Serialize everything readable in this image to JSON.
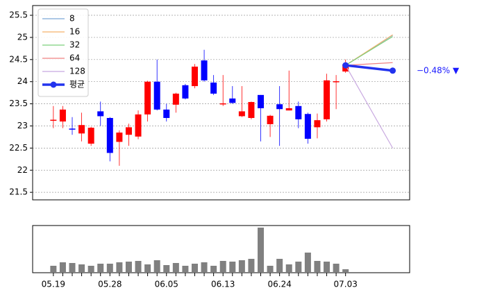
{
  "chart_data": {
    "type": "candlestick",
    "categories": [
      "05.19",
      null,
      null,
      null,
      null,
      null,
      "05.28",
      null,
      null,
      null,
      null,
      null,
      "06.05",
      null,
      null,
      null,
      null,
      null,
      "06.13",
      null,
      null,
      null,
      null,
      null,
      "06.24",
      null,
      null,
      null,
      null,
      null,
      null,
      "07.03"
    ],
    "open": [
      23.12,
      23.1,
      22.94,
      22.83,
      22.6,
      23.33,
      23.18,
      22.64,
      22.8,
      22.76,
      23.26,
      24.0,
      23.37,
      23.48,
      23.92,
      23.9,
      24.48,
      23.98,
      23.49,
      23.62,
      23.22,
      23.18,
      23.7,
      23.04,
      23.49,
      23.35,
      23.45,
      23.27,
      22.97,
      23.15,
      23.99,
      24.23
    ],
    "close": [
      23.14,
      23.37,
      22.92,
      23.02,
      22.96,
      23.22,
      22.39,
      22.85,
      22.97,
      23.26,
      24.0,
      23.37,
      23.18,
      23.73,
      23.62,
      24.34,
      24.03,
      23.73,
      23.51,
      23.52,
      23.33,
      23.54,
      23.4,
      23.23,
      23.38,
      23.4,
      23.15,
      22.71,
      23.13,
      24.03,
      24.01,
      24.39
    ],
    "high": [
      23.45,
      23.45,
      23.2,
      23.3,
      22.98,
      23.55,
      23.2,
      22.9,
      23.05,
      23.35,
      24.02,
      24.5,
      23.5,
      23.75,
      23.95,
      24.4,
      24.72,
      24.15,
      24.15,
      23.9,
      23.9,
      23.55,
      23.7,
      23.25,
      23.9,
      24.25,
      23.55,
      23.3,
      23.28,
      24.18,
      24.15,
      24.5
    ],
    "low": [
      22.95,
      22.95,
      22.8,
      22.65,
      22.55,
      23.0,
      22.2,
      22.1,
      22.55,
      22.7,
      23.1,
      23.35,
      23.1,
      23.3,
      23.6,
      23.85,
      24.0,
      23.7,
      23.45,
      23.5,
      23.2,
      23.15,
      22.65,
      22.75,
      22.55,
      23.35,
      22.95,
      22.6,
      22.72,
      23.1,
      23.38,
      24.2
    ],
    "up_color": "#ff0000",
    "down_color": "#0000ff",
    "xlim": [
      -2.2,
      37.8
    ],
    "ylim": [
      21.33,
      25.72
    ],
    "yticks": [
      21.5,
      22.0,
      22.5,
      23.0,
      23.5,
      24.0,
      24.5,
      25.0,
      25.5
    ],
    "grid": true,
    "legend": "upper left",
    "projection": {
      "x": [
        31,
        36
      ],
      "series": [
        {
          "name": "8",
          "color": "#7aa6d8",
          "values": [
            24.37,
            25.05
          ]
        },
        {
          "name": "16",
          "color": "#f5b26b",
          "values": [
            24.37,
            25.06
          ]
        },
        {
          "name": "32",
          "color": "#7cd07c",
          "values": [
            24.37,
            25.02
          ]
        },
        {
          "name": "64",
          "color": "#f08080",
          "values": [
            24.37,
            24.43
          ]
        },
        {
          "name": "128",
          "color": "#c8a8e0",
          "values": [
            24.37,
            22.5
          ]
        },
        {
          "name": "평균",
          "color": "#2233ee",
          "values": [
            24.37,
            24.25
          ]
        }
      ]
    },
    "annotation": "−0.48% ▼",
    "volume": {
      "color": "#808080",
      "ylim": [
        0,
        68
      ],
      "values": [
        10,
        15,
        14,
        12,
        10,
        13,
        13,
        15,
        16,
        17,
        12,
        18,
        11,
        14,
        10,
        13,
        15,
        10,
        17,
        16,
        18,
        20,
        65,
        10,
        20,
        12,
        16,
        29,
        17,
        16,
        13,
        5
      ]
    }
  }
}
